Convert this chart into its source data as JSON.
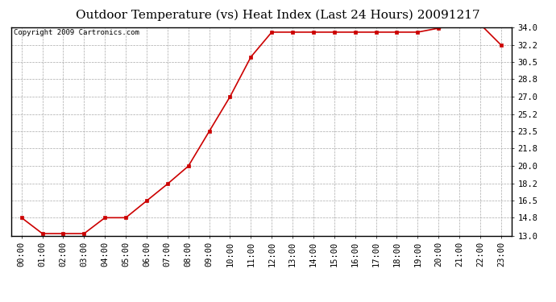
{
  "title": "Outdoor Temperature (vs) Heat Index (Last 24 Hours) 20091217",
  "copyright": "Copyright 2009 Cartronics.com",
  "x_labels": [
    "00:00",
    "01:00",
    "02:00",
    "03:00",
    "04:00",
    "05:00",
    "06:00",
    "07:00",
    "08:00",
    "09:00",
    "10:00",
    "11:00",
    "12:00",
    "13:00",
    "14:00",
    "15:00",
    "16:00",
    "17:00",
    "18:00",
    "19:00",
    "20:00",
    "21:00",
    "22:00",
    "23:00"
  ],
  "y_values": [
    14.8,
    13.2,
    13.2,
    13.2,
    14.8,
    14.8,
    16.5,
    18.2,
    20.0,
    23.5,
    27.0,
    31.0,
    33.5,
    33.5,
    33.5,
    33.5,
    33.5,
    33.5,
    33.5,
    33.5,
    33.9,
    34.3,
    34.3,
    32.2
  ],
  "y_ticks": [
    13.0,
    14.8,
    16.5,
    18.2,
    20.0,
    21.8,
    23.5,
    25.2,
    27.0,
    28.8,
    30.5,
    32.2,
    34.0
  ],
  "y_tick_labels": [
    "13.0",
    "14.8",
    "16.5",
    "18.2",
    "20.0",
    "21.8",
    "23.5",
    "25.2",
    "27.0",
    "28.8",
    "30.5",
    "32.2",
    "34.0"
  ],
  "ylim": [
    13.0,
    34.0
  ],
  "line_color": "#cc0000",
  "marker": "s",
  "marker_size": 3,
  "bg_color": "#ffffff",
  "plot_bg_color": "#ffffff",
  "grid_color": "#aaaaaa",
  "title_fontsize": 11,
  "tick_fontsize": 7.5,
  "copyright_fontsize": 6.5
}
